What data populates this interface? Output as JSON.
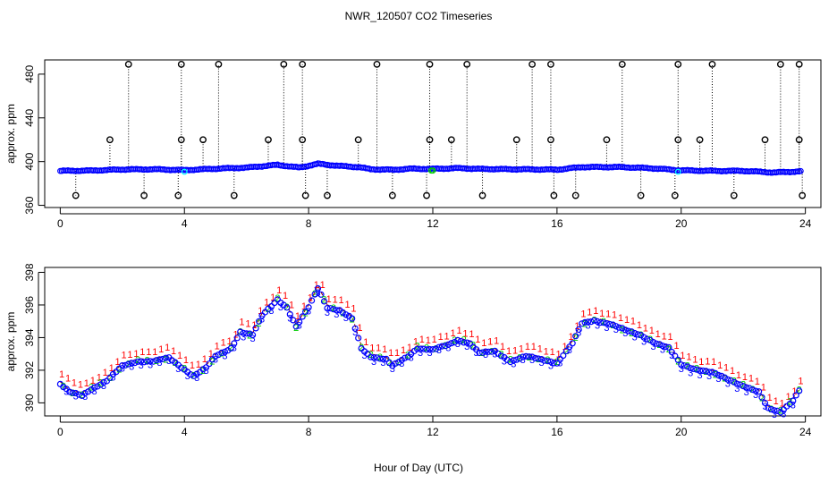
{
  "title": "NWR_120507  CO2 Timeseries",
  "x_label": "Hour of Day (UTC)",
  "colors": {
    "axis": "#000000",
    "series_blue": "#0000ff",
    "series_red": "#ff0000",
    "series_green": "#00cc00",
    "series_cyan": "#00ffff",
    "outlier": "#000000"
  },
  "chart_data": [
    {
      "type": "scatter",
      "title": "NWR_120507  CO2 Timeseries",
      "xlabel": "",
      "ylabel": "approx. ppm",
      "xlim": [
        -0.5,
        24.5
      ],
      "ylim": [
        358,
        493
      ],
      "xticks": [
        0,
        4,
        8,
        12,
        16,
        20,
        24
      ],
      "yticks": [
        360,
        400,
        440,
        480
      ],
      "baseline_knots": [
        [
          0,
          391.5
        ],
        [
          1,
          391.8
        ],
        [
          2,
          392.8
        ],
        [
          3,
          393
        ],
        [
          4,
          392.2
        ],
        [
          5,
          393.5
        ],
        [
          6,
          394.5
        ],
        [
          7,
          397
        ],
        [
          7.7,
          394.5
        ],
        [
          8.3,
          398
        ],
        [
          9,
          396
        ],
        [
          9.6,
          395
        ],
        [
          10,
          393
        ],
        [
          10.7,
          392.5
        ],
        [
          11.3,
          393.5
        ],
        [
          12,
          393.3
        ],
        [
          12.8,
          394
        ],
        [
          13.5,
          393.3
        ],
        [
          14.5,
          393
        ],
        [
          15.6,
          392.8
        ],
        [
          16,
          392.6
        ],
        [
          16.8,
          395
        ],
        [
          18,
          395
        ],
        [
          19,
          394
        ],
        [
          20,
          392
        ],
        [
          21,
          391.5
        ],
        [
          22,
          391.5
        ],
        [
          23,
          390
        ],
        [
          23.8,
          391
        ]
      ],
      "outliers_high": [
        2.2,
        3.9,
        5.1,
        7.2,
        7.8,
        10.2,
        11.9,
        13.1,
        15.2,
        15.8,
        18.1,
        19.9,
        21.0,
        23.2,
        23.8
      ],
      "outliers_mid": [
        1.6,
        3.9,
        4.6,
        6.7,
        7.8,
        9.6,
        11.9,
        12.6,
        14.7,
        15.8,
        17.6,
        19.9,
        20.6,
        22.7,
        23.8
      ],
      "outliers_low": [
        0.5,
        2.7,
        3.8,
        5.6,
        7.9,
        8.6,
        10.7,
        11.8,
        13.6,
        15.9,
        16.6,
        18.7,
        19.8,
        21.7,
        23.9
      ],
      "outlier_values": {
        "high": 489,
        "mid": 420,
        "low": 369
      }
    },
    {
      "type": "scatter",
      "xlabel": "Hour of Day (UTC)",
      "ylabel": "approx. ppm",
      "xlim": [
        -0.5,
        24.5
      ],
      "ylim": [
        389.2,
        398.3
      ],
      "xticks": [
        0,
        4,
        8,
        12,
        16,
        20,
        24
      ],
      "yticks": [
        390,
        392,
        394,
        396,
        398
      ],
      "series": [
        {
          "name": "1",
          "color": "#ff0000",
          "marker": "1"
        },
        {
          "name": "2",
          "color": "#00cc00",
          "marker": "2"
        },
        {
          "name": "3",
          "color": "#0000ff",
          "marker": "3"
        },
        {
          "name": "o",
          "color": "#0000ff",
          "marker": "o"
        }
      ],
      "knots": [
        [
          0,
          391.3
        ],
        [
          0.3,
          390.8
        ],
        [
          0.7,
          390.6
        ],
        [
          1,
          391
        ],
        [
          1.5,
          391.5
        ],
        [
          2,
          392.4
        ],
        [
          2.5,
          392.7
        ],
        [
          3,
          392.7
        ],
        [
          3.5,
          392.9
        ],
        [
          4,
          392.2
        ],
        [
          4.3,
          391.8
        ],
        [
          4.7,
          392.3
        ],
        [
          5,
          393
        ],
        [
          5.5,
          393.5
        ],
        [
          5.8,
          394.5
        ],
        [
          6.2,
          394.3
        ],
        [
          6.5,
          395.5
        ],
        [
          7,
          396.5
        ],
        [
          7.3,
          396
        ],
        [
          7.6,
          394.8
        ],
        [
          8,
          396
        ],
        [
          8.3,
          397.2
        ],
        [
          8.6,
          396
        ],
        [
          9,
          395.8
        ],
        [
          9.4,
          395.3
        ],
        [
          9.7,
          393.5
        ],
        [
          10,
          393
        ],
        [
          10.5,
          392.8
        ],
        [
          10.7,
          392.4
        ],
        [
          11.2,
          393
        ],
        [
          11.5,
          393.5
        ],
        [
          12,
          393.4
        ],
        [
          12.5,
          393.7
        ],
        [
          12.8,
          394
        ],
        [
          13.2,
          393.8
        ],
        [
          13.5,
          393.2
        ],
        [
          14,
          393.3
        ],
        [
          14.5,
          392.7
        ],
        [
          15,
          393
        ],
        [
          15.5,
          392.8
        ],
        [
          16,
          392.6
        ],
        [
          16.5,
          393.8
        ],
        [
          16.8,
          395
        ],
        [
          17.2,
          395.2
        ],
        [
          17.7,
          395
        ],
        [
          18.2,
          394.6
        ],
        [
          18.7,
          394.3
        ],
        [
          19.2,
          393.8
        ],
        [
          19.6,
          393.5
        ],
        [
          20,
          392.5
        ],
        [
          20.5,
          392.2
        ],
        [
          21,
          392
        ],
        [
          21.5,
          391.6
        ],
        [
          22,
          391.2
        ],
        [
          22.5,
          390.8
        ],
        [
          22.8,
          389.8
        ],
        [
          23.2,
          389.6
        ],
        [
          23.6,
          390.3
        ],
        [
          23.8,
          390.9
        ]
      ]
    }
  ]
}
